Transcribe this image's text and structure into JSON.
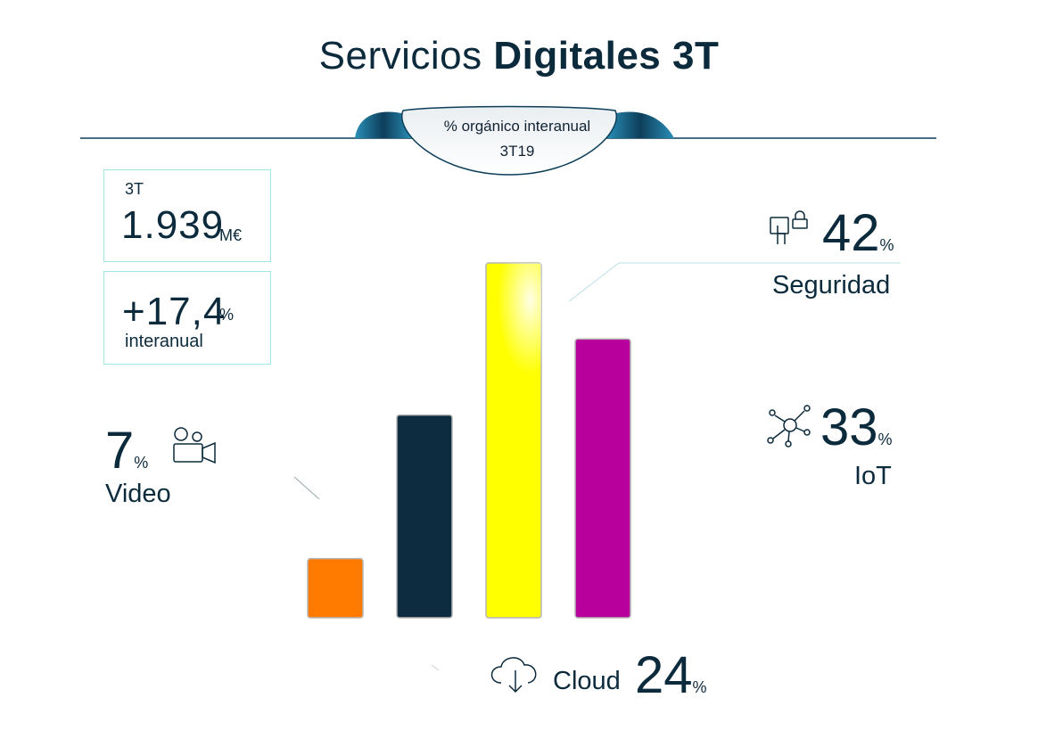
{
  "title": {
    "light": "Servicios ",
    "bold": "Digitales 3T"
  },
  "ribbon": {
    "line1": "% orgánico interanual",
    "line2": "3T19"
  },
  "kpi_revenue": {
    "label": "3T",
    "value": "1.939",
    "unit": "M€"
  },
  "kpi_growth": {
    "value": "+17,4",
    "unit": "%",
    "label": "interanual"
  },
  "colors": {
    "video": "#ff7b00",
    "cloud": "#0d2c40",
    "seguridad": "#ffff00",
    "iot": "#b8009c",
    "accent": "#9ee6df",
    "text": "#0b2a3c"
  },
  "icons": {
    "video": "video-camera-icon",
    "cloud": "cloud-download-icon",
    "seguridad": "touch-lock-icon",
    "iot": "network-nodes-icon"
  },
  "chart_data": {
    "type": "bar",
    "categories": [
      "Video",
      "Cloud",
      "Seguridad",
      "IoT"
    ],
    "values": [
      7,
      24,
      42,
      33
    ],
    "unit": "%",
    "ylim": [
      0,
      42
    ],
    "grid": false,
    "labels": {
      "video": {
        "value": "7",
        "unit": "%",
        "name": "Video"
      },
      "cloud": {
        "value": "24",
        "unit": "%",
        "name": "Cloud"
      },
      "seguridad": {
        "value": "42",
        "unit": "%",
        "name": "Seguridad"
      },
      "iot": {
        "value": "33",
        "unit": "%",
        "name": "IoT"
      }
    }
  }
}
